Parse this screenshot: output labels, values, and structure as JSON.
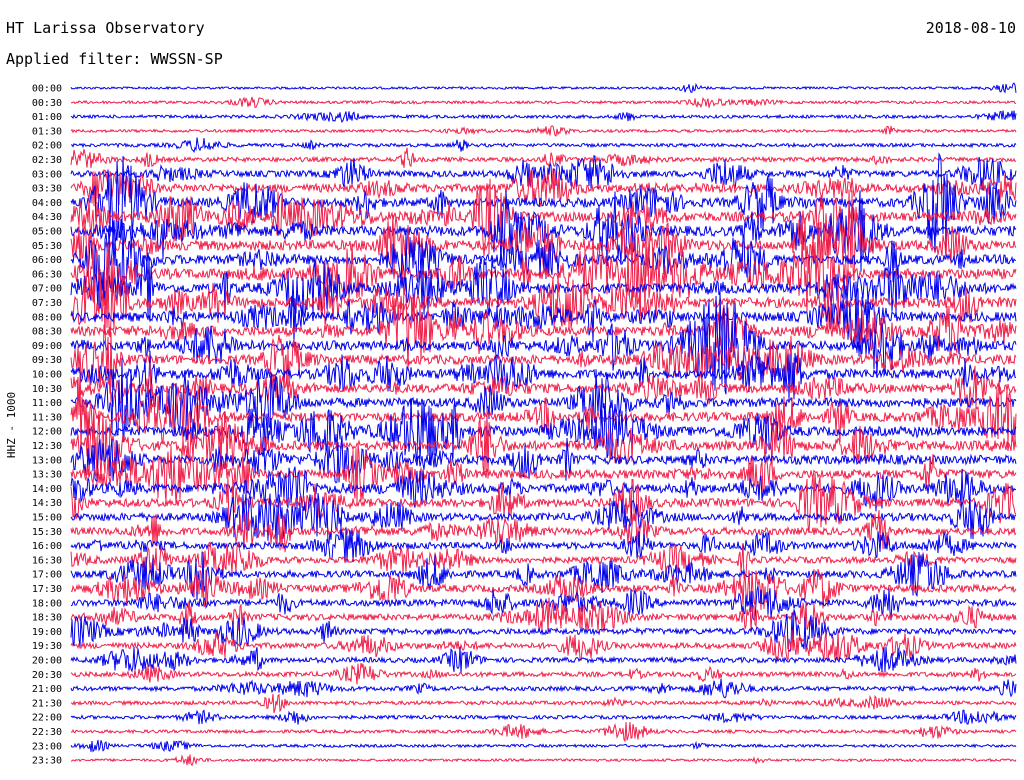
{
  "header": {
    "title": "HT Larissa Observatory",
    "date": "2018-08-10",
    "filter": "Applied filter: WWSSN-SP"
  },
  "chart_data": {
    "type": "line",
    "subtype": "helicorder",
    "ylabel": "HHZ - 1000",
    "time_labels": [
      "00:00",
      "00:30",
      "01:00",
      "01:30",
      "02:00",
      "02:30",
      "03:00",
      "03:30",
      "04:00",
      "04:30",
      "05:00",
      "05:30",
      "06:00",
      "06:30",
      "07:00",
      "07:30",
      "08:00",
      "08:30",
      "09:00",
      "09:30",
      "10:00",
      "10:30",
      "11:00",
      "11:30",
      "12:00",
      "12:30",
      "13:00",
      "13:30",
      "14:00",
      "14:30",
      "15:00",
      "15:30",
      "16:00",
      "16:30",
      "17:00",
      "17:30",
      "18:00",
      "18:30",
      "19:00",
      "19:30",
      "20:00",
      "20:30",
      "21:00",
      "21:30",
      "22:00",
      "22:30",
      "23:00",
      "23:30"
    ],
    "trace_colors": [
      "#0000ee",
      "#f0204a"
    ],
    "activity": [
      0.35,
      0.5,
      0.6,
      0.5,
      0.7,
      1.0,
      1.6,
      2.2,
      2.4,
      2.6,
      2.8,
      2.7,
      2.6,
      2.8,
      2.7,
      2.8,
      2.6,
      2.6,
      2.6,
      2.5,
      2.6,
      2.4,
      2.5,
      2.5,
      2.5,
      2.5,
      2.4,
      2.4,
      2.3,
      2.2,
      2.0,
      1.9,
      1.7,
      1.6,
      1.8,
      1.9,
      1.7,
      1.6,
      1.5,
      1.4,
      1.2,
      1.1,
      1.0,
      0.8,
      0.7,
      0.6,
      0.5,
      0.4
    ]
  }
}
